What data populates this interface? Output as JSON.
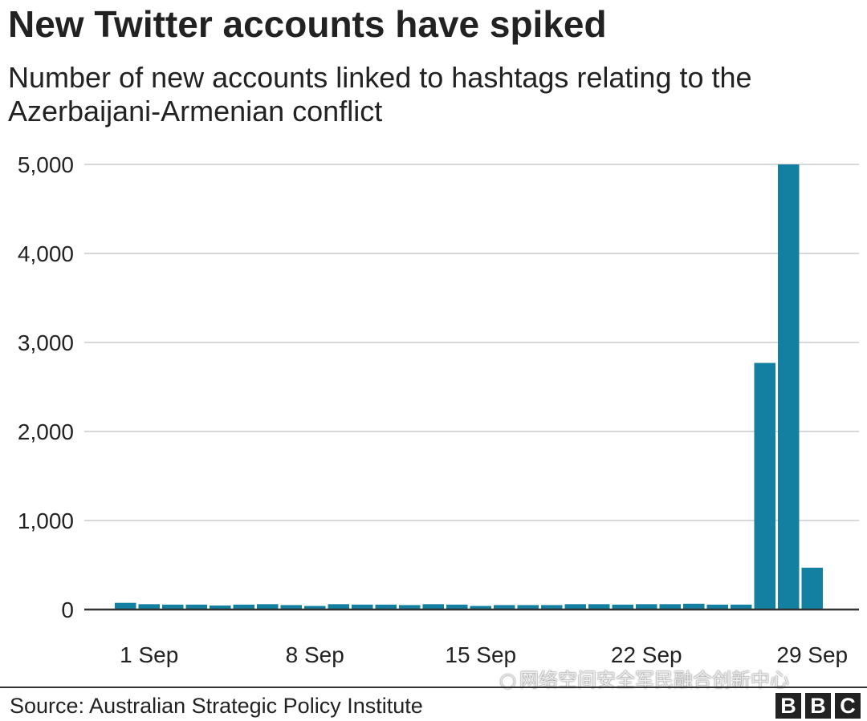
{
  "title": "New Twitter accounts have spiked",
  "subtitle": "Number of new accounts linked to hashtags relating to the Azerbaijani-Armenian conflict",
  "source": "Source: Australian Strategic Policy Institute",
  "watermark": "网络空间安全军民融合创新中心",
  "logo": [
    "B",
    "B",
    "C"
  ],
  "colors": {
    "bar": "#1380A1",
    "gridline": "#cbcbcb",
    "baseline": "#333333",
    "text": "#222222"
  },
  "chart_data": {
    "type": "bar",
    "title": "New Twitter accounts have spiked",
    "subtitle": "Number of new accounts linked to hashtags relating to the Azerbaijani-Armenian conflict",
    "xlabel": "",
    "ylabel": "",
    "ylim": [
      0,
      5000
    ],
    "yticks": [
      0,
      1000,
      2000,
      3000,
      4000,
      5000
    ],
    "ytick_labels": [
      "0",
      "1,000",
      "2,000",
      "3,000",
      "4,000",
      "5,000"
    ],
    "xtick_labels": [
      {
        "label": "1 Sep",
        "category": "1 Sep"
      },
      {
        "label": "8 Sep",
        "category": "8 Sep"
      },
      {
        "label": "15 Sep",
        "category": "15 Sep"
      },
      {
        "label": "22 Sep",
        "category": "22 Sep"
      },
      {
        "label": "29 Sep",
        "category": "29 Sep"
      }
    ],
    "grid": true,
    "legend": "none",
    "categories": [
      "31 Aug",
      "1 Sep",
      "2 Sep",
      "3 Sep",
      "4 Sep",
      "5 Sep",
      "6 Sep",
      "7 Sep",
      "8 Sep",
      "9 Sep",
      "10 Sep",
      "11 Sep",
      "12 Sep",
      "13 Sep",
      "14 Sep",
      "15 Sep",
      "16 Sep",
      "17 Sep",
      "18 Sep",
      "19 Sep",
      "20 Sep",
      "21 Sep",
      "22 Sep",
      "23 Sep",
      "24 Sep",
      "25 Sep",
      "26 Sep",
      "27 Sep",
      "28 Sep",
      "29 Sep",
      "30 Sep"
    ],
    "values": [
      75,
      60,
      55,
      55,
      45,
      55,
      60,
      50,
      40,
      60,
      55,
      55,
      50,
      60,
      55,
      40,
      50,
      50,
      50,
      60,
      60,
      55,
      60,
      60,
      65,
      55,
      55,
      2770,
      5000,
      470,
      0
    ]
  }
}
